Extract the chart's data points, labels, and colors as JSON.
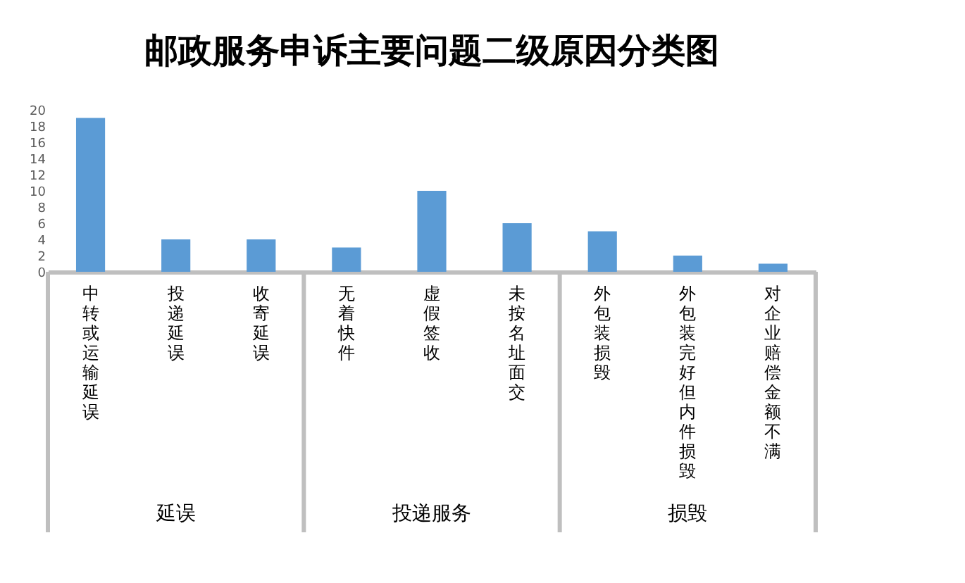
{
  "chart_data": {
    "type": "bar",
    "title": "邮政服务申诉主要问题二级原因分类图",
    "categories": [
      "中转或运输延误",
      "投递延误",
      "收寄延误",
      "无着快件",
      "虚假签收",
      "未按名址面交",
      "外包装损毁",
      "外包装完好但内件损毁",
      "对企业赔偿金额不满"
    ],
    "values": [
      19,
      4,
      4,
      3,
      10,
      6,
      5,
      2,
      1
    ],
    "color": "#5b9bd5",
    "ylim": [
      0,
      20
    ],
    "yticks": [
      0,
      2,
      4,
      6,
      8,
      10,
      12,
      14,
      16,
      18,
      20
    ],
    "grid": false,
    "annotations": [
      "延误",
      "投递服务",
      "损毁"
    ]
  }
}
